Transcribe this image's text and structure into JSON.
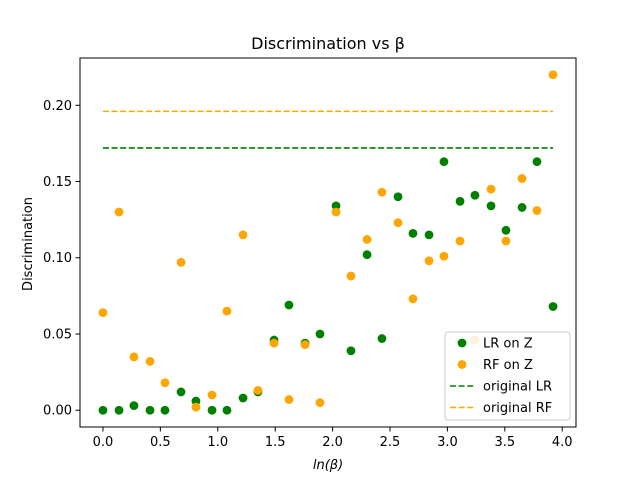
{
  "chart_data": {
    "type": "scatter",
    "title": "Discrimination vs β",
    "xlabel": "ln(β)",
    "ylabel": "Discrimination",
    "xlim": [
      -0.2,
      4.12
    ],
    "ylim": [
      -0.011,
      0.231
    ],
    "xticks": [
      0.0,
      0.5,
      1.0,
      1.5,
      2.0,
      2.5,
      3.0,
      3.5,
      4.0
    ],
    "xtick_labels": [
      "0.0",
      "0.5",
      "1.0",
      "1.5",
      "2.0",
      "2.5",
      "3.0",
      "3.5",
      "4.0"
    ],
    "yticks": [
      0.0,
      0.05,
      0.1,
      0.15,
      0.2
    ],
    "ytick_labels": [
      "0.00",
      "0.05",
      "0.10",
      "0.15",
      "0.20"
    ],
    "grid": false,
    "legend_position": "lower-right",
    "series": [
      {
        "name": "LR on Z",
        "kind": "scatter",
        "color": "#008000",
        "x": [
          0.0,
          0.14,
          0.27,
          0.41,
          0.54,
          0.68,
          0.81,
          0.95,
          1.08,
          1.22,
          1.35,
          1.49,
          1.62,
          1.76,
          1.89,
          2.03,
          2.16,
          2.3,
          2.43,
          2.57,
          2.7,
          2.84,
          2.97,
          3.11,
          3.24,
          3.38,
          3.51,
          3.65,
          3.78,
          3.92
        ],
        "y": [
          0.0,
          0.0,
          0.003,
          0.0,
          0.0,
          0.012,
          0.006,
          0.0,
          0.0,
          0.008,
          0.012,
          0.046,
          0.069,
          0.044,
          0.05,
          0.134,
          0.039,
          0.102,
          0.047,
          0.14,
          0.116,
          0.115,
          0.163,
          0.137,
          0.141,
          0.134,
          0.118,
          0.133,
          0.163,
          0.068
        ]
      },
      {
        "name": "RF on Z",
        "kind": "scatter",
        "color": "#ffa500",
        "x": [
          0.0,
          0.14,
          0.27,
          0.41,
          0.54,
          0.68,
          0.81,
          0.95,
          1.08,
          1.22,
          1.35,
          1.49,
          1.62,
          1.76,
          1.89,
          2.03,
          2.16,
          2.3,
          2.43,
          2.57,
          2.7,
          2.84,
          2.97,
          3.11,
          3.24,
          3.38,
          3.51,
          3.65,
          3.78,
          3.92
        ],
        "y": [
          0.064,
          0.13,
          0.035,
          0.032,
          0.018,
          0.097,
          0.002,
          0.01,
          0.065,
          0.115,
          0.013,
          0.044,
          0.007,
          0.043,
          0.005,
          0.13,
          0.088,
          0.112,
          0.143,
          0.123,
          0.073,
          0.098,
          0.101,
          0.111,
          0.046,
          0.145,
          0.111,
          0.152,
          0.131,
          0.22
        ]
      },
      {
        "name": "original LR",
        "kind": "hline",
        "color": "#008000",
        "y": 0.172,
        "x_range": [
          0.0,
          3.92
        ]
      },
      {
        "name": "original RF",
        "kind": "hline",
        "color": "#ffa500",
        "y": 0.196,
        "x_range": [
          0.0,
          3.92
        ]
      }
    ]
  }
}
